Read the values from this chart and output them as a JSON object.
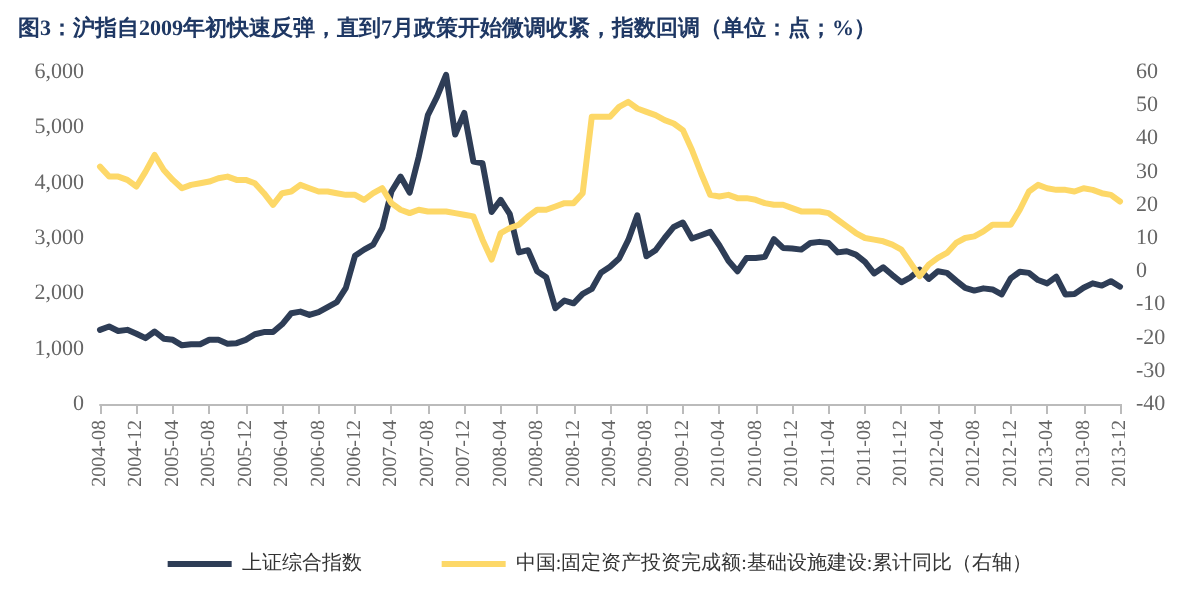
{
  "chart_data": {
    "type": "line",
    "title": "图3：沪指自2009年初快速反弹，直到7月政策开始微调收紧，指数回调（单位：点；%）",
    "categories": [
      "2004-08",
      null,
      null,
      null,
      "2004-12",
      null,
      null,
      null,
      "2005-04",
      null,
      null,
      null,
      "2005-08",
      null,
      null,
      null,
      "2005-12",
      null,
      null,
      null,
      "2006-04",
      null,
      null,
      null,
      "2006-08",
      null,
      null,
      null,
      "2006-12",
      null,
      null,
      null,
      "2007-04",
      null,
      null,
      null,
      "2007-08",
      null,
      null,
      null,
      "2007-12",
      null,
      null,
      null,
      "2008-04",
      null,
      null,
      null,
      "2008-08",
      null,
      null,
      null,
      "2008-12",
      null,
      null,
      null,
      "2009-04",
      null,
      null,
      null,
      "2009-08",
      null,
      null,
      null,
      "2009-12",
      null,
      null,
      null,
      "2010-04",
      null,
      null,
      null,
      "2010-08",
      null,
      null,
      null,
      "2010-12",
      null,
      null,
      null,
      "2011-04",
      null,
      null,
      null,
      "2011-08",
      null,
      null,
      null,
      "2011-12",
      null,
      null,
      null,
      "2012-04",
      null,
      null,
      null,
      "2012-08",
      null,
      null,
      null,
      "2012-12",
      null,
      null,
      null,
      "2013-04",
      null,
      null,
      null,
      "2013-08",
      null,
      null,
      null,
      "2013-12"
    ],
    "series": [
      {
        "name": "上证综合指数",
        "color": "#2e3d56",
        "values": [
          1340,
          1400,
          1320,
          1340,
          1270,
          1190,
          1310,
          1180,
          1160,
          1060,
          1080,
          1080,
          1160,
          1160,
          1090,
          1100,
          1160,
          1260,
          1300,
          1300,
          1440,
          1640,
          1670,
          1610,
          1660,
          1750,
          1840,
          2100,
          2680,
          2790,
          2880,
          3180,
          3840,
          4110,
          3820,
          4470,
          5220,
          5550,
          5950,
          4870,
          5260,
          4380,
          4350,
          3470,
          3690,
          3430,
          2740,
          2780,
          2400,
          2290,
          1730,
          1870,
          1820,
          1990,
          2080,
          2370,
          2480,
          2630,
          2960,
          3410,
          2670,
          2780,
          3000,
          3200,
          3280,
          2990,
          3050,
          3110,
          2870,
          2590,
          2400,
          2640,
          2640,
          2660,
          2980,
          2820,
          2810,
          2790,
          2910,
          2930,
          2910,
          2740,
          2760,
          2700,
          2570,
          2360,
          2470,
          2330,
          2200,
          2290,
          2430,
          2260,
          2400,
          2370,
          2230,
          2100,
          2050,
          2090,
          2070,
          1980,
          2270,
          2390,
          2370,
          2240,
          2180,
          2300,
          1980,
          1990,
          2100,
          2180,
          2140,
          2220,
          2120
        ]
      },
      {
        "name": "中国:固定资产投资完成额:基础设施建设:累计同比（右轴）",
        "color": "#fdd868",
        "axis": "y2",
        "values": [
          31.5,
          28.5,
          28.5,
          27.5,
          25.5,
          30,
          35,
          30.5,
          27.5,
          25,
          26,
          26.5,
          27,
          28,
          28.5,
          27.5,
          27.5,
          26.5,
          23.5,
          20,
          23.5,
          24,
          26,
          25,
          24,
          24,
          23.5,
          23,
          23,
          21.5,
          23.5,
          25,
          20.5,
          18.5,
          17.5,
          18.5,
          18,
          18,
          18,
          17.5,
          17,
          16.5,
          9.5,
          3.5,
          11.5,
          13,
          14,
          16.5,
          18.5,
          18.5,
          19.5,
          20.5,
          20.5,
          23.5,
          46.5,
          46.5,
          46.5,
          49.5,
          51,
          49,
          48,
          47,
          45.5,
          44.5,
          42.5,
          36.5,
          29.5,
          23,
          22.5,
          23,
          22,
          22,
          21.5,
          20.5,
          20,
          20,
          19,
          18,
          18,
          18,
          17.5,
          15.5,
          13.5,
          11.5,
          10,
          9.5,
          9,
          8,
          6.5,
          2.5,
          -1.5,
          2,
          4,
          5.5,
          8.5,
          10,
          10.5,
          12,
          14,
          14,
          14,
          18.5,
          24,
          26,
          25,
          24.5,
          24.5,
          24,
          25,
          24.5,
          23.5,
          23,
          21
        ]
      }
    ],
    "ylim": [
      0,
      6000
    ],
    "yticks": [
      0,
      {
        "value": 1000,
        "label": "1,000"
      },
      {
        "value": 2000,
        "label": "2,000"
      },
      {
        "value": 3000,
        "label": "3,000"
      },
      {
        "value": 4000,
        "label": "4,000"
      },
      {
        "value": 5000,
        "label": "5,000"
      },
      {
        "value": 6000,
        "label": "6,000"
      }
    ],
    "y2lim": [
      -40,
      60
    ],
    "y2ticks": [
      -40,
      -30,
      -20,
      -10,
      0,
      10,
      20,
      30,
      40,
      50,
      60
    ],
    "legend": "bottom",
    "grid": false,
    "marker": "none",
    "line_style": "solid"
  }
}
